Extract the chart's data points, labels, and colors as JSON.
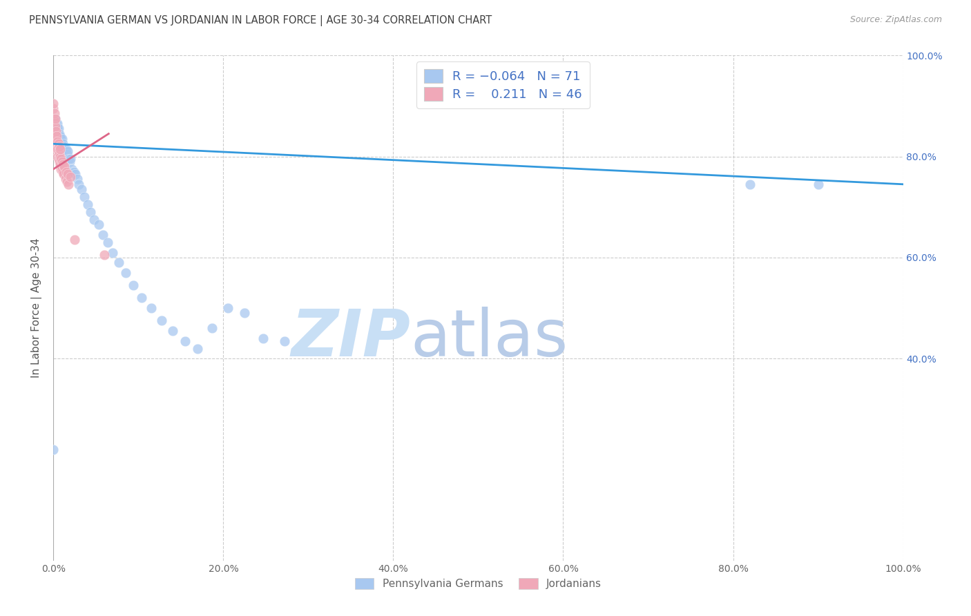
{
  "title": "PENNSYLVANIA GERMAN VS JORDANIAN IN LABOR FORCE | AGE 30-34 CORRELATION CHART",
  "source": "Source: ZipAtlas.com",
  "ylabel": "In Labor Force | Age 30-34",
  "xlim": [
    0,
    1.0
  ],
  "ylim": [
    0,
    1.0
  ],
  "blue_R": "-0.064",
  "blue_N": "71",
  "pink_R": "0.211",
  "pink_N": "46",
  "blue_color": "#a8c8f0",
  "pink_color": "#f0a8b8",
  "blue_line_color": "#3399dd",
  "pink_line_color": "#dd6688",
  "watermark_zip": "ZIP",
  "watermark_atlas": "atlas",
  "legend_label_blue": "Pennsylvania Germans",
  "legend_label_pink": "Jordanians",
  "blue_scatter_x": [
    0.0,
    0.0,
    0.001,
    0.001,
    0.001,
    0.001,
    0.002,
    0.002,
    0.002,
    0.003,
    0.003,
    0.003,
    0.004,
    0.004,
    0.004,
    0.005,
    0.005,
    0.005,
    0.006,
    0.006,
    0.006,
    0.007,
    0.007,
    0.008,
    0.008,
    0.009,
    0.009,
    0.01,
    0.01,
    0.011,
    0.011,
    0.012,
    0.012,
    0.013,
    0.014,
    0.015,
    0.016,
    0.017,
    0.018,
    0.019,
    0.02,
    0.022,
    0.024,
    0.026,
    0.028,
    0.03,
    0.033,
    0.036,
    0.04,
    0.044,
    0.048,
    0.053,
    0.058,
    0.064,
    0.07,
    0.077,
    0.085,
    0.094,
    0.104,
    0.115,
    0.127,
    0.14,
    0.155,
    0.17,
    0.187,
    0.205,
    0.225,
    0.247,
    0.272,
    0.82,
    0.9
  ],
  "blue_scatter_y": [
    0.22,
    0.84,
    0.855,
    0.86,
    0.865,
    0.875,
    0.85,
    0.86,
    0.875,
    0.845,
    0.855,
    0.865,
    0.84,
    0.85,
    0.86,
    0.845,
    0.855,
    0.865,
    0.83,
    0.845,
    0.855,
    0.835,
    0.845,
    0.83,
    0.84,
    0.825,
    0.835,
    0.82,
    0.835,
    0.815,
    0.825,
    0.81,
    0.82,
    0.815,
    0.81,
    0.815,
    0.805,
    0.81,
    0.795,
    0.79,
    0.795,
    0.775,
    0.77,
    0.765,
    0.755,
    0.745,
    0.735,
    0.72,
    0.705,
    0.69,
    0.675,
    0.665,
    0.645,
    0.63,
    0.61,
    0.59,
    0.57,
    0.545,
    0.52,
    0.5,
    0.475,
    0.455,
    0.435,
    0.42,
    0.46,
    0.5,
    0.49,
    0.44,
    0.435,
    0.745,
    0.745
  ],
  "pink_scatter_x": [
    0.0,
    0.0,
    0.0,
    0.0,
    0.001,
    0.001,
    0.001,
    0.001,
    0.002,
    0.002,
    0.002,
    0.002,
    0.003,
    0.003,
    0.003,
    0.004,
    0.004,
    0.004,
    0.005,
    0.005,
    0.005,
    0.006,
    0.006,
    0.006,
    0.007,
    0.007,
    0.007,
    0.008,
    0.008,
    0.008,
    0.009,
    0.009,
    0.01,
    0.01,
    0.011,
    0.011,
    0.012,
    0.013,
    0.014,
    0.015,
    0.016,
    0.017,
    0.018,
    0.02,
    0.025,
    0.06
  ],
  "pink_scatter_y": [
    0.845,
    0.875,
    0.895,
    0.905,
    0.835,
    0.855,
    0.87,
    0.885,
    0.83,
    0.845,
    0.86,
    0.875,
    0.82,
    0.835,
    0.85,
    0.81,
    0.825,
    0.84,
    0.8,
    0.815,
    0.83,
    0.795,
    0.81,
    0.825,
    0.79,
    0.805,
    0.82,
    0.785,
    0.8,
    0.815,
    0.775,
    0.795,
    0.775,
    0.79,
    0.77,
    0.785,
    0.765,
    0.78,
    0.755,
    0.77,
    0.75,
    0.765,
    0.745,
    0.76,
    0.635,
    0.605
  ],
  "blue_trendline_x": [
    0.0,
    1.0
  ],
  "blue_trendline_y": [
    0.825,
    0.745
  ],
  "pink_trendline_x": [
    0.0,
    0.065
  ],
  "pink_trendline_y": [
    0.775,
    0.845
  ],
  "background_color": "#ffffff",
  "grid_color": "#cccccc",
  "title_color": "#404040"
}
